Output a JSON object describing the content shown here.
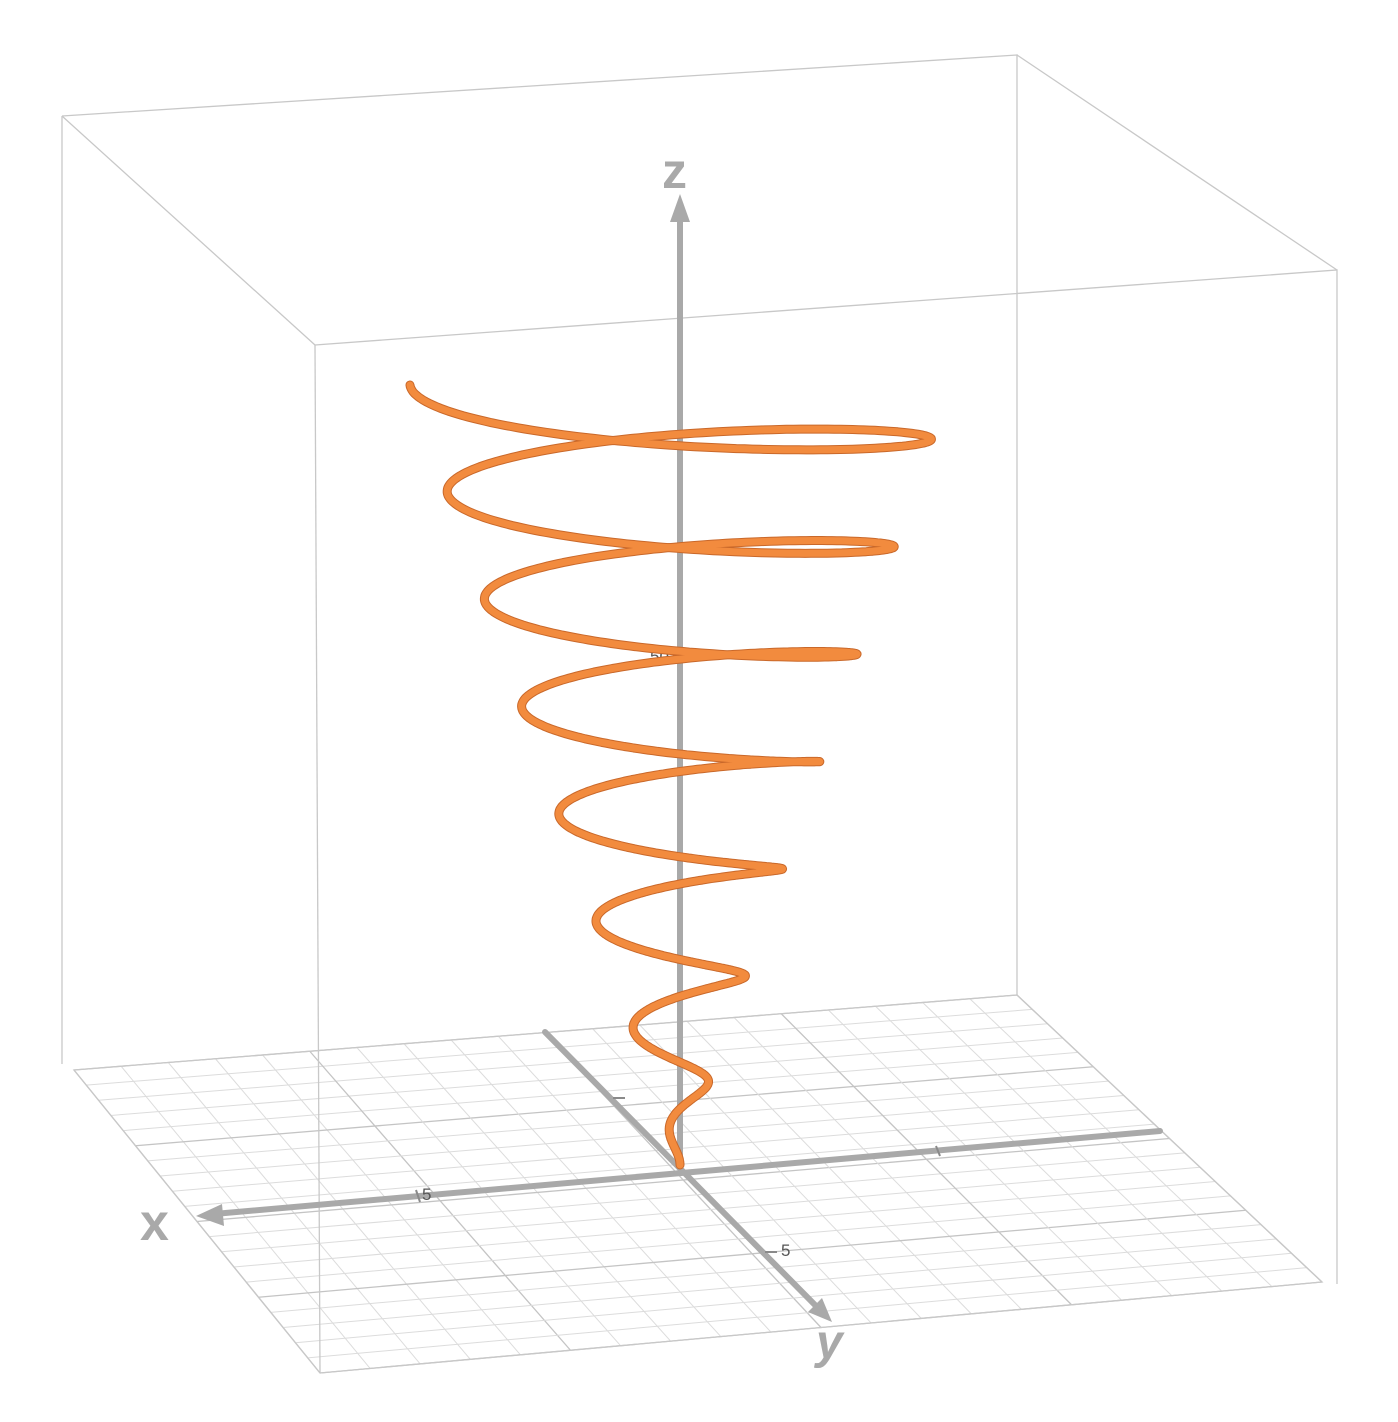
{
  "graph": {
    "curve_color": "#f28b3e",
    "axis_color": "#a9a9a9",
    "curve_turns": 7.25,
    "axes": {
      "x_label": "x",
      "y_label": "y",
      "z_label": "z"
    },
    "z_tick_label": "50",
    "x_tick_label": "5",
    "y_tick_label": "5"
  }
}
